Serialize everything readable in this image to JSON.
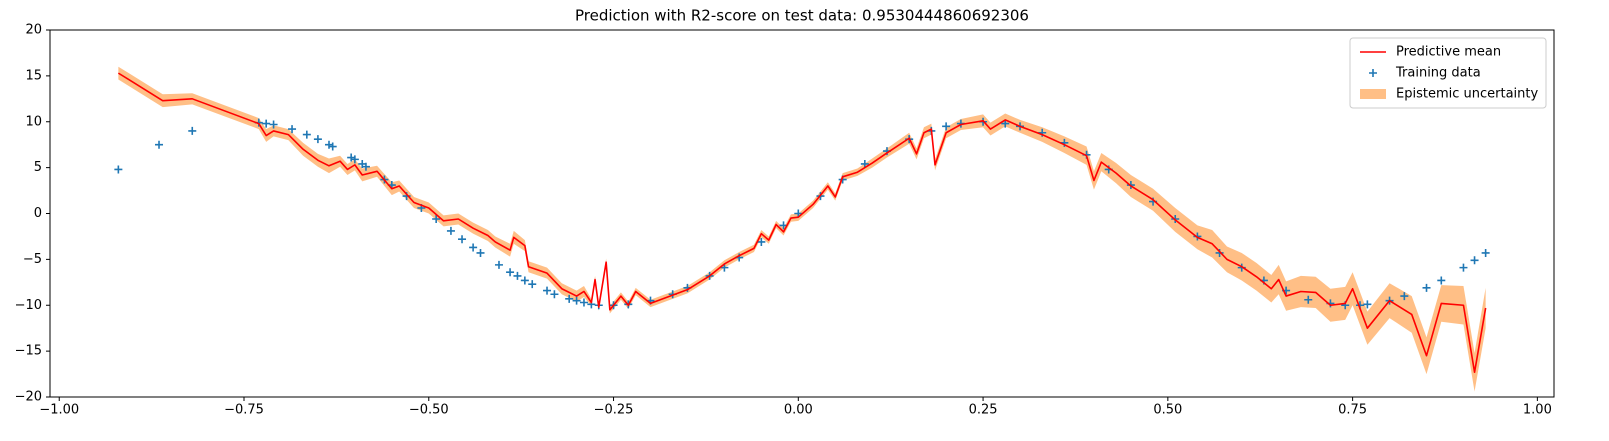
{
  "chart_data": {
    "type": "line",
    "title": "Prediction with R2-score on test data: 0.9530444860692306",
    "legend": "upper right",
    "xlim": [
      -1.0125,
      1.0225
    ],
    "ylim": [
      -20,
      20
    ],
    "xticks": [
      {
        "value": -1,
        "label": "−1.00"
      },
      {
        "value": -0.75,
        "label": "−0.75"
      },
      {
        "value": -0.5,
        "label": "−0.50"
      },
      {
        "value": -0.25,
        "label": "−0.25"
      },
      {
        "value": 0,
        "label": "0.00"
      },
      {
        "value": 0.25,
        "label": "0.25"
      },
      {
        "value": 0.5,
        "label": "0.50"
      },
      {
        "value": 0.75,
        "label": "0.75"
      },
      {
        "value": 1,
        "label": "1.00"
      }
    ],
    "yticks": [
      {
        "value": -20,
        "label": "−20"
      },
      {
        "value": -15,
        "label": "−15"
      },
      {
        "value": -10,
        "label": "−10"
      },
      {
        "value": -5,
        "label": "−5"
      },
      0,
      5,
      10,
      15,
      20
    ],
    "x": [
      -0.92,
      -0.86,
      -0.82,
      -0.73,
      -0.72,
      -0.71,
      -0.69,
      -0.67,
      -0.65,
      -0.635,
      -0.62,
      -0.61,
      -0.6,
      -0.59,
      -0.57,
      -0.55,
      -0.54,
      -0.52,
      -0.5,
      -0.48,
      -0.46,
      -0.44,
      -0.42,
      -0.41,
      -0.39,
      -0.385,
      -0.37,
      -0.365,
      -0.34,
      -0.32,
      -0.3,
      -0.29,
      -0.28,
      -0.275,
      -0.27,
      -0.26,
      -0.255,
      -0.24,
      -0.23,
      -0.22,
      -0.2,
      -0.18,
      -0.15,
      -0.12,
      -0.1,
      -0.08,
      -0.06,
      -0.05,
      -0.04,
      -0.03,
      -0.02,
      -0.01,
      0.0,
      0.02,
      0.04,
      0.05,
      0.06,
      0.08,
      0.1,
      0.12,
      0.15,
      0.16,
      0.17,
      0.18,
      0.185,
      0.2,
      0.22,
      0.25,
      0.26,
      0.28,
      0.3,
      0.33,
      0.36,
      0.39,
      0.4,
      0.41,
      0.43,
      0.45,
      0.48,
      0.51,
      0.54,
      0.56,
      0.58,
      0.6,
      0.62,
      0.64,
      0.65,
      0.66,
      0.68,
      0.7,
      0.72,
      0.74,
      0.75,
      0.77,
      0.8,
      0.83,
      0.85,
      0.87,
      0.9,
      0.915,
      0.93
    ],
    "series": [
      {
        "name": "Predictive mean",
        "color": "#ff0000",
        "values": [
          15.3,
          12.3,
          12.5,
          9.8,
          8.5,
          9.0,
          8.6,
          7.0,
          5.8,
          5.2,
          5.7,
          4.8,
          5.3,
          4.2,
          4.6,
          2.7,
          3.0,
          1.2,
          0.6,
          -0.8,
          -0.6,
          -1.6,
          -2.4,
          -3.1,
          -4.0,
          -2.6,
          -3.5,
          -5.8,
          -6.5,
          -8.2,
          -9.0,
          -8.5,
          -9.7,
          -7.2,
          -10.2,
          -5.3,
          -10.5,
          -9.0,
          -10.0,
          -8.5,
          -9.8,
          -9.2,
          -8.3,
          -6.8,
          -5.5,
          -4.6,
          -3.8,
          -2.2,
          -2.9,
          -1.2,
          -2.0,
          -0.5,
          -0.4,
          1.0,
          3.0,
          1.8,
          4.0,
          4.5,
          5.5,
          6.6,
          8.2,
          6.5,
          8.8,
          9.2,
          5.3,
          8.8,
          9.7,
          10.1,
          9.2,
          10.2,
          9.5,
          8.6,
          7.5,
          6.3,
          3.6,
          5.6,
          4.4,
          3.0,
          1.5,
          -0.7,
          -2.6,
          -3.3,
          -5.0,
          -5.8,
          -6.9,
          -8.2,
          -7.2,
          -9.0,
          -8.5,
          -8.6,
          -10.0,
          -9.8,
          -8.2,
          -12.5,
          -9.5,
          -11.0,
          -15.5,
          -9.8,
          -10.0,
          -17.3,
          -10.3
        ]
      }
    ],
    "scatter": {
      "name": "Training data",
      "color": "#1f77b4",
      "x": [
        -0.92,
        -0.865,
        -0.82,
        -0.73,
        -0.72,
        -0.71,
        -0.685,
        -0.665,
        -0.65,
        -0.635,
        -0.63,
        -0.605,
        -0.6,
        -0.59,
        -0.585,
        -0.56,
        -0.55,
        -0.53,
        -0.51,
        -0.49,
        -0.47,
        -0.455,
        -0.44,
        -0.43,
        -0.405,
        -0.39,
        -0.38,
        -0.37,
        -0.36,
        -0.34,
        -0.33,
        -0.31,
        -0.3,
        -0.29,
        -0.28,
        -0.27,
        -0.25,
        -0.23,
        -0.2,
        -0.17,
        -0.15,
        -0.12,
        -0.1,
        -0.08,
        -0.05,
        -0.02,
        0,
        0.03,
        0.06,
        0.09,
        0.12,
        0.15,
        0.18,
        0.2,
        0.22,
        0.25,
        0.28,
        0.3,
        0.33,
        0.36,
        0.39,
        0.42,
        0.45,
        0.48,
        0.51,
        0.54,
        0.57,
        0.6,
        0.63,
        0.66,
        0.69,
        0.72,
        0.74,
        0.76,
        0.77,
        0.8,
        0.82,
        0.85,
        0.87,
        0.9,
        0.915,
        0.93
      ],
      "values": [
        4.8,
        7.5,
        9.0,
        9.9,
        9.8,
        9.7,
        9.2,
        8.6,
        8.1,
        7.5,
        7.3,
        6.1,
        5.9,
        5.4,
        5.1,
        3.7,
        3.1,
        1.9,
        0.6,
        -0.6,
        -1.9,
        -2.8,
        -3.7,
        -4.3,
        -5.6,
        -6.4,
        -6.8,
        -7.3,
        -7.7,
        -8.4,
        -8.8,
        -9.3,
        -9.5,
        -9.7,
        -9.9,
        -10.0,
        -10.0,
        -9.9,
        -9.5,
        -8.8,
        -8.1,
        -6.8,
        -5.9,
        -4.8,
        -3.1,
        -1.3,
        0,
        1.9,
        3.7,
        5.4,
        6.8,
        8.1,
        9.0,
        9.5,
        9.8,
        10.0,
        9.8,
        9.5,
        8.8,
        7.7,
        6.4,
        4.8,
        3.1,
        1.3,
        -0.6,
        -2.5,
        -4.3,
        -5.9,
        -7.3,
        -8.4,
        -9.4,
        -9.8,
        -10.0,
        -10.0,
        -9.9,
        -9.5,
        -9.0,
        -8.1,
        -7.3,
        -5.9,
        -5.1,
        -4.3
      ]
    },
    "band": {
      "name": "Epistemic uncertainty",
      "color": "#ff7f0e",
      "alpha": 0.5,
      "lower": [
        14.6,
        11.6,
        11.9,
        9.2,
        7.8,
        8.4,
        8.0,
        6.3,
        5.1,
        4.4,
        5.1,
        4.2,
        4.7,
        3.5,
        4.0,
        2.0,
        2.4,
        0.6,
        0.0,
        -1.4,
        -1.2,
        -2.2,
        -3.0,
        -3.7,
        -4.7,
        -3.3,
        -4.1,
        -6.4,
        -7.1,
        -8.8,
        -9.6,
        -9.1,
        -10.1,
        -7.6,
        -10.6,
        -5.7,
        -10.9,
        -9.4,
        -10.4,
        -8.9,
        -10.2,
        -9.6,
        -8.7,
        -7.2,
        -5.9,
        -5.0,
        -4.2,
        -2.6,
        -3.3,
        -1.6,
        -2.4,
        -0.9,
        -0.8,
        0.6,
        2.6,
        1.4,
        3.6,
        4.1,
        5.0,
        6.1,
        7.6,
        5.9,
        8.2,
        8.6,
        4.7,
        8.2,
        9.1,
        9.4,
        8.5,
        9.5,
        8.8,
        7.8,
        6.6,
        5.3,
        2.6,
        4.6,
        3.3,
        1.8,
        0.3,
        -2.0,
        -3.9,
        -4.8,
        -6.4,
        -7.3,
        -8.4,
        -9.7,
        -8.8,
        -10.6,
        -10.2,
        -10.3,
        -11.8,
        -11.6,
        -10.0,
        -14.3,
        -11.4,
        -13.0,
        -17.5,
        -11.8,
        -12.1,
        -19.4,
        -12.5
      ],
      "upper": [
        16.0,
        13.0,
        13.1,
        10.4,
        9.2,
        9.6,
        9.2,
        7.7,
        6.5,
        6.0,
        6.3,
        5.4,
        5.9,
        4.9,
        5.2,
        3.4,
        3.6,
        1.8,
        1.2,
        -0.2,
        0.0,
        -1.0,
        -1.8,
        -2.5,
        -3.3,
        -1.9,
        -2.9,
        -5.2,
        -5.9,
        -7.6,
        -8.4,
        -7.9,
        -9.3,
        -6.8,
        -9.8,
        -4.9,
        -10.1,
        -8.6,
        -9.6,
        -8.1,
        -9.4,
        -8.8,
        -7.9,
        -6.4,
        -5.1,
        -4.2,
        -3.4,
        -1.8,
        -2.5,
        -0.8,
        -1.6,
        -0.1,
        0.0,
        1.4,
        3.4,
        2.2,
        4.4,
        4.9,
        6.0,
        7.1,
        8.8,
        7.1,
        9.4,
        9.8,
        5.9,
        9.4,
        10.3,
        10.8,
        9.9,
        10.9,
        10.2,
        9.4,
        8.4,
        7.3,
        4.6,
        6.6,
        5.5,
        4.2,
        2.7,
        0.6,
        -1.3,
        -1.8,
        -3.6,
        -4.3,
        -5.4,
        -6.7,
        -5.6,
        -7.4,
        -6.8,
        -6.9,
        -8.2,
        -8.0,
        -6.4,
        -10.7,
        -7.6,
        -9.0,
        -13.5,
        -7.8,
        -7.9,
        -15.2,
        -8.1
      ]
    }
  }
}
